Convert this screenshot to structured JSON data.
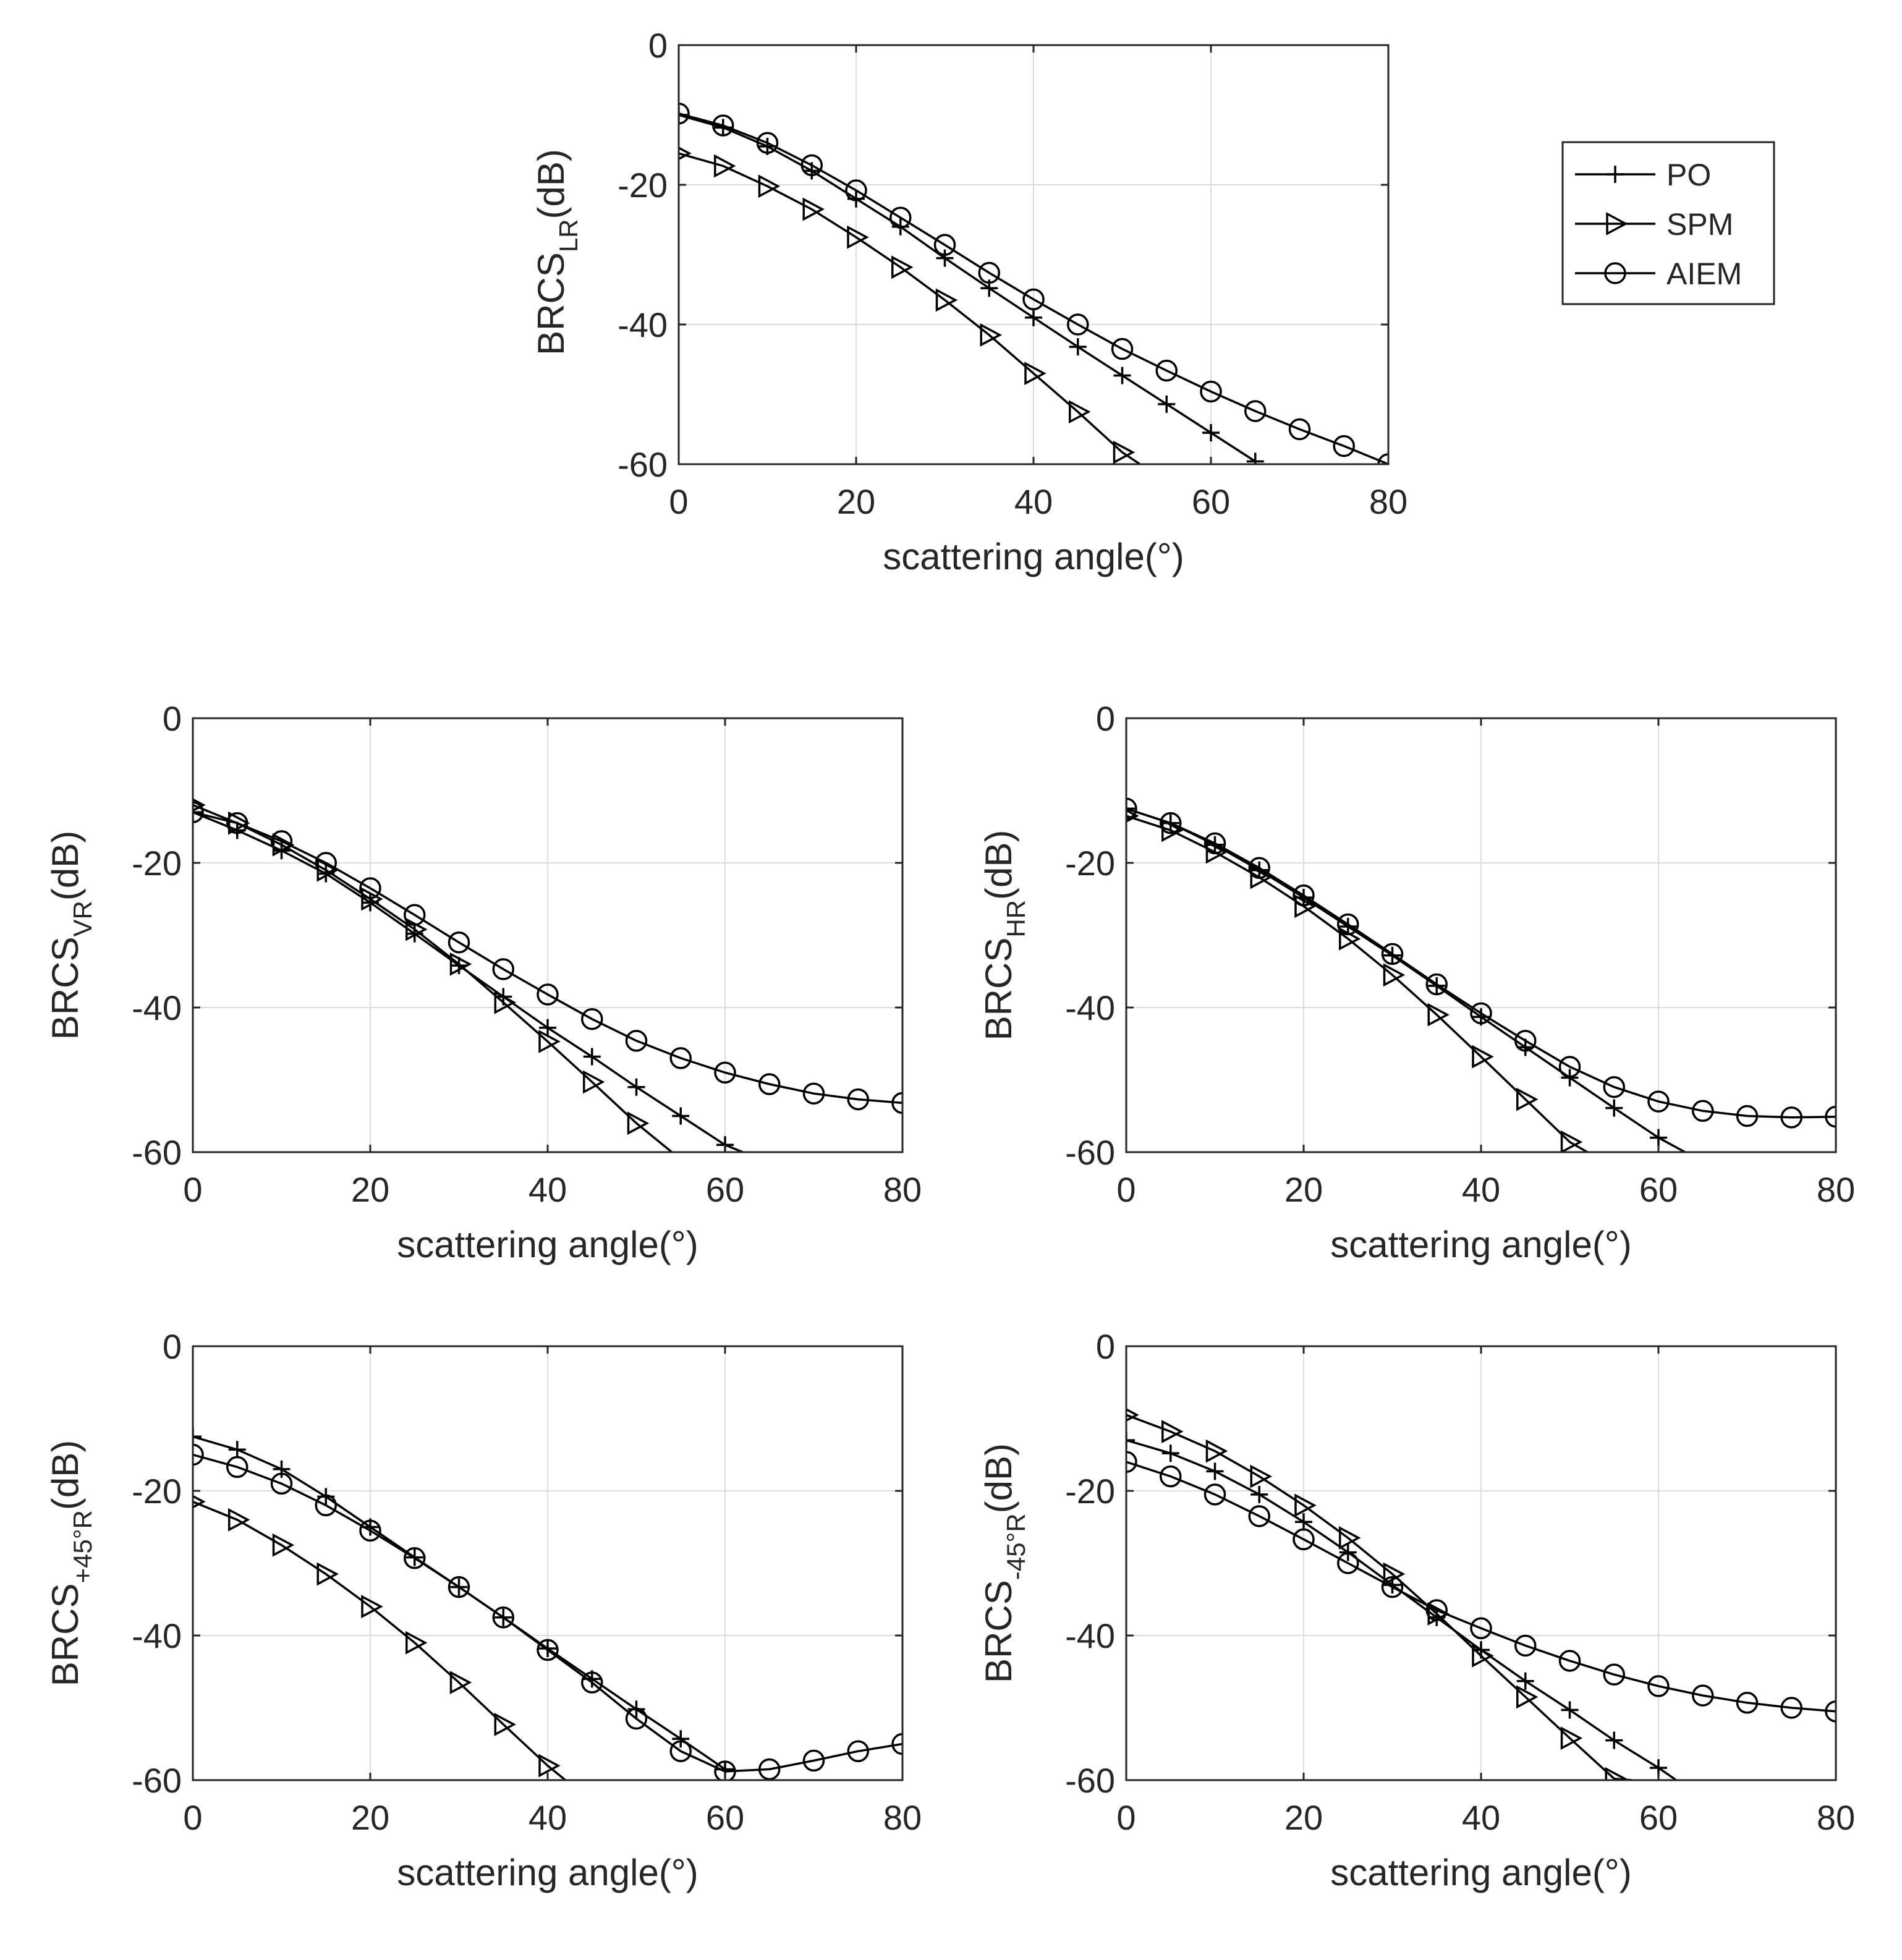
{
  "colors": {
    "background": "#ffffff",
    "axis": "#262626",
    "grid": "#dcdcdc",
    "series": "#000000"
  },
  "legend": {
    "placement": "top-right",
    "entries": [
      {
        "label": "PO",
        "marker": "plus"
      },
      {
        "label": "SPM",
        "marker": "triangle-right"
      },
      {
        "label": "AIEM",
        "marker": "circle"
      }
    ]
  },
  "chart_data": [
    {
      "id": "lr",
      "type": "line",
      "title": "",
      "xlabel": "scattering angle(°)",
      "ylabel": {
        "main": "BRCS",
        "sub": "LR",
        "unit": "(dB)"
      },
      "xlim": [
        0,
        80
      ],
      "ylim": [
        -60,
        0
      ],
      "xticks": [
        "0",
        "20",
        "40",
        "60",
        "80"
      ],
      "yticks": [
        "0",
        "-20",
        "-40",
        "-60"
      ],
      "grid": true,
      "series": [
        {
          "name": "PO",
          "marker": "plus",
          "x": [
            0,
            5,
            10,
            15,
            20,
            25,
            30,
            35,
            40,
            45,
            50,
            55,
            60,
            65
          ],
          "y": [
            -10,
            -11.8,
            -14.5,
            -18,
            -22,
            -26,
            -30.5,
            -34.8,
            -39,
            -43.2,
            -47.3,
            -51.4,
            -55.5,
            -59.6
          ]
        },
        {
          "name": "SPM",
          "marker": "triangle-right",
          "x": [
            0,
            5,
            10,
            15,
            20,
            25,
            30,
            35,
            40,
            45,
            50,
            52
          ],
          "y": [
            -15.5,
            -17.3,
            -20.2,
            -23.5,
            -27.5,
            -31.8,
            -36.5,
            -41.5,
            -47,
            -52.5,
            -58.3,
            -60
          ]
        },
        {
          "name": "AIEM",
          "marker": "circle",
          "x": [
            0,
            5,
            10,
            15,
            20,
            25,
            30,
            35,
            40,
            45,
            50,
            55,
            60,
            65,
            70,
            75,
            80
          ],
          "y": [
            -9.8,
            -11.5,
            -14,
            -17.2,
            -20.8,
            -24.7,
            -28.6,
            -32.6,
            -36.4,
            -40,
            -43.5,
            -46.6,
            -49.6,
            -52.4,
            -55,
            -57.4,
            -60
          ]
        }
      ]
    },
    {
      "id": "vr",
      "type": "line",
      "title": "",
      "xlabel": "scattering angle(°)",
      "ylabel": {
        "main": "BRCS",
        "sub": "VR",
        "unit": "(dB)"
      },
      "xlim": [
        0,
        80
      ],
      "ylim": [
        -60,
        0
      ],
      "xticks": [
        "0",
        "20",
        "40",
        "60",
        "80"
      ],
      "yticks": [
        "0",
        "-20",
        "-40",
        "-60"
      ],
      "grid": true,
      "series": [
        {
          "name": "PO",
          "marker": "plus",
          "x": [
            0,
            5,
            10,
            15,
            20,
            25,
            30,
            35,
            40,
            45,
            50,
            55,
            60,
            62
          ],
          "y": [
            -13,
            -15.5,
            -18.3,
            -21.5,
            -25.5,
            -29.8,
            -34.2,
            -38.5,
            -42.8,
            -46.8,
            -51,
            -55,
            -59,
            -60
          ]
        },
        {
          "name": "SPM",
          "marker": "triangle-right",
          "x": [
            0,
            5,
            10,
            15,
            20,
            25,
            30,
            35,
            40,
            45,
            50,
            54
          ],
          "y": [
            -12,
            -14.5,
            -17.5,
            -21,
            -25,
            -29.2,
            -34,
            -39.3,
            -44.7,
            -50.3,
            -56,
            -60
          ]
        },
        {
          "name": "AIEM",
          "marker": "circle",
          "x": [
            0,
            5,
            10,
            15,
            20,
            25,
            30,
            35,
            40,
            45,
            50,
            55,
            60,
            65,
            70,
            75,
            80
          ],
          "y": [
            -13,
            -14.5,
            -17,
            -20,
            -23.5,
            -27.2,
            -31,
            -34.7,
            -38.2,
            -41.6,
            -44.6,
            -47,
            -49,
            -50.6,
            -51.9,
            -52.7,
            -53.2
          ]
        }
      ]
    },
    {
      "id": "hr",
      "type": "line",
      "title": "",
      "xlabel": "scattering angle(°)",
      "ylabel": {
        "main": "BRCS",
        "sub": "HR",
        "unit": "(dB)"
      },
      "xlim": [
        0,
        80
      ],
      "ylim": [
        -60,
        0
      ],
      "xticks": [
        "0",
        "20",
        "40",
        "60",
        "80"
      ],
      "yticks": [
        "0",
        "-20",
        "-40",
        "-60"
      ],
      "grid": true,
      "series": [
        {
          "name": "PO",
          "marker": "plus",
          "x": [
            0,
            5,
            10,
            15,
            20,
            25,
            30,
            35,
            40,
            45,
            50,
            55,
            60,
            63
          ],
          "y": [
            -12.5,
            -14.5,
            -17.5,
            -21,
            -24.8,
            -28.8,
            -32.8,
            -37,
            -41.3,
            -45.5,
            -49.7,
            -53.9,
            -58,
            -60
          ]
        },
        {
          "name": "SPM",
          "marker": "triangle-right",
          "x": [
            0,
            5,
            10,
            15,
            20,
            25,
            30,
            35,
            40,
            45,
            50,
            52
          ],
          "y": [
            -13.5,
            -15.5,
            -18.5,
            -22,
            -26,
            -30.5,
            -35.5,
            -41,
            -46.8,
            -52.7,
            -58.6,
            -60
          ]
        },
        {
          "name": "AIEM",
          "marker": "circle",
          "x": [
            0,
            5,
            10,
            15,
            20,
            25,
            30,
            35,
            40,
            45,
            50,
            55,
            60,
            65,
            70,
            75,
            80
          ],
          "y": [
            -12.5,
            -14.5,
            -17.3,
            -20.7,
            -24.5,
            -28.5,
            -32.6,
            -36.8,
            -40.8,
            -44.6,
            -48.2,
            -51,
            -53,
            -54.3,
            -55,
            -55.2,
            -55.1
          ]
        }
      ]
    },
    {
      "id": "p45r",
      "type": "line",
      "title": "",
      "xlabel": "scattering angle(°)",
      "ylabel": {
        "main": "BRCS",
        "sub": "+45°R",
        "unit": "(dB)"
      },
      "xlim": [
        0,
        80
      ],
      "ylim": [
        -60,
        0
      ],
      "xticks": [
        "0",
        "20",
        "40",
        "60",
        "80"
      ],
      "yticks": [
        "0",
        "-20",
        "-40",
        "-60"
      ],
      "grid": true,
      "series": [
        {
          "name": "PO",
          "marker": "plus",
          "x": [
            0,
            5,
            10,
            15,
            20,
            25,
            30,
            35,
            40,
            45,
            50,
            55,
            60
          ],
          "y": [
            -12.5,
            -14.3,
            -17,
            -20.8,
            -25,
            -29.2,
            -33.3,
            -37.5,
            -41.8,
            -46,
            -50.2,
            -54.3,
            -58.5
          ]
        },
        {
          "name": "SPM",
          "marker": "triangle-right",
          "x": [
            0,
            5,
            10,
            15,
            20,
            25,
            30,
            35,
            40,
            42
          ],
          "y": [
            -21.5,
            -24,
            -27.5,
            -31.5,
            -36,
            -41,
            -46.5,
            -52.3,
            -58,
            -60
          ]
        },
        {
          "name": "AIEM",
          "marker": "circle",
          "x": [
            0,
            5,
            10,
            15,
            20,
            25,
            30,
            35,
            40,
            45,
            50,
            55,
            60,
            65,
            70,
            75,
            80
          ],
          "y": [
            -15,
            -16.7,
            -19,
            -22,
            -25.5,
            -29.3,
            -33.3,
            -37.5,
            -42,
            -46.5,
            -51.5,
            -56,
            -58.8,
            -58.5,
            -57.3,
            -56,
            -55
          ]
        }
      ]
    },
    {
      "id": "m45r",
      "type": "line",
      "title": "",
      "xlabel": "scattering angle(°)",
      "ylabel": {
        "main": "BRCS",
        "sub": "-45°R",
        "unit": "(dB)"
      },
      "xlim": [
        0,
        80
      ],
      "ylim": [
        -60,
        0
      ],
      "xticks": [
        "0",
        "20",
        "40",
        "60",
        "80"
      ],
      "yticks": [
        "0",
        "-20",
        "-40",
        "-60"
      ],
      "grid": true,
      "series": [
        {
          "name": "PO",
          "marker": "plus",
          "x": [
            0,
            5,
            10,
            15,
            20,
            25,
            30,
            35,
            40,
            45,
            50,
            55,
            60,
            62
          ],
          "y": [
            -13,
            -14.8,
            -17.3,
            -20.5,
            -24.3,
            -28.5,
            -33,
            -37.5,
            -42,
            -46.3,
            -50.3,
            -54.5,
            -58.3,
            -60
          ]
        },
        {
          "name": "SPM",
          "marker": "triangle-right",
          "x": [
            0,
            5,
            10,
            15,
            20,
            25,
            30,
            35,
            40,
            45,
            50,
            55,
            57
          ],
          "y": [
            -9.5,
            -11.8,
            -14.5,
            -18,
            -22,
            -26.5,
            -31.5,
            -37,
            -42.8,
            -48.5,
            -54.2,
            -59.8,
            -60
          ]
        },
        {
          "name": "AIEM",
          "marker": "circle",
          "x": [
            0,
            5,
            10,
            15,
            20,
            25,
            30,
            35,
            40,
            45,
            50,
            55,
            60,
            65,
            70,
            75,
            80
          ],
          "y": [
            -16,
            -18,
            -20.5,
            -23.5,
            -26.7,
            -30,
            -33.3,
            -36.5,
            -39,
            -41.4,
            -43.5,
            -45.4,
            -47,
            -48.3,
            -49.3,
            -50,
            -50.5
          ]
        }
      ]
    }
  ]
}
